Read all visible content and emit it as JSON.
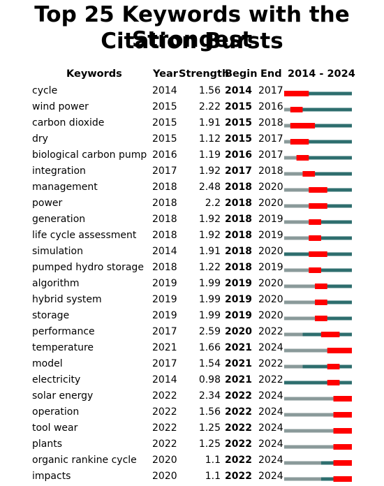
{
  "title_line1": "Top 25 Keywords with the Strongest",
  "title_line2": "Citation Bursts",
  "headers": {
    "keywords": "Keywords",
    "year": "Year",
    "strength": "Strength",
    "begin": "Begin",
    "end": "End",
    "range": "2014 - 2024"
  },
  "colors": {
    "burst": "#ff0000",
    "active": "#2e6e6e",
    "before": "#8a9a9a"
  },
  "chart_data": {
    "type": "table",
    "range_start": 2014,
    "range_end": 2024,
    "rows": [
      {
        "keyword": "cycle",
        "year": 2014,
        "strength": "1.56",
        "begin": 2014,
        "end": 2017
      },
      {
        "keyword": "wind power",
        "year": 2015,
        "strength": "2.22",
        "begin": 2015,
        "end": 2016
      },
      {
        "keyword": "carbon dioxide",
        "year": 2015,
        "strength": "1.91",
        "begin": 2015,
        "end": 2018
      },
      {
        "keyword": "dry",
        "year": 2015,
        "strength": "1.12",
        "begin": 2015,
        "end": 2017
      },
      {
        "keyword": "biological carbon pump",
        "year": 2016,
        "strength": "1.19",
        "begin": 2016,
        "end": 2017
      },
      {
        "keyword": "integration",
        "year": 2017,
        "strength": "1.92",
        "begin": 2017,
        "end": 2018
      },
      {
        "keyword": "management",
        "year": 2018,
        "strength": "2.48",
        "begin": 2018,
        "end": 2020
      },
      {
        "keyword": "power",
        "year": 2018,
        "strength": "2.2",
        "begin": 2018,
        "end": 2020
      },
      {
        "keyword": "generation",
        "year": 2018,
        "strength": "1.92",
        "begin": 2018,
        "end": 2019
      },
      {
        "keyword": "life cycle assessment",
        "year": 2018,
        "strength": "1.92",
        "begin": 2018,
        "end": 2019
      },
      {
        "keyword": "simulation",
        "year": 2014,
        "strength": "1.91",
        "begin": 2018,
        "end": 2020
      },
      {
        "keyword": "pumped hydro storage",
        "year": 2018,
        "strength": "1.22",
        "begin": 2018,
        "end": 2019
      },
      {
        "keyword": "algorithm",
        "year": 2019,
        "strength": "1.99",
        "begin": 2019,
        "end": 2020
      },
      {
        "keyword": "hybrid system",
        "year": 2019,
        "strength": "1.99",
        "begin": 2019,
        "end": 2020
      },
      {
        "keyword": "storage",
        "year": 2019,
        "strength": "1.99",
        "begin": 2019,
        "end": 2020
      },
      {
        "keyword": "performance",
        "year": 2017,
        "strength": "2.59",
        "begin": 2020,
        "end": 2022
      },
      {
        "keyword": "temperature",
        "year": 2021,
        "strength": "1.66",
        "begin": 2021,
        "end": 2024
      },
      {
        "keyword": "model",
        "year": 2017,
        "strength": "1.54",
        "begin": 2021,
        "end": 2022
      },
      {
        "keyword": "electricity",
        "year": 2014,
        "strength": "0.98",
        "begin": 2021,
        "end": 2022
      },
      {
        "keyword": "solar energy",
        "year": 2022,
        "strength": "2.34",
        "begin": 2022,
        "end": 2024
      },
      {
        "keyword": "operation",
        "year": 2022,
        "strength": "1.56",
        "begin": 2022,
        "end": 2024
      },
      {
        "keyword": "tool wear",
        "year": 2022,
        "strength": "1.25",
        "begin": 2022,
        "end": 2024
      },
      {
        "keyword": "plants",
        "year": 2022,
        "strength": "1.25",
        "begin": 2022,
        "end": 2024
      },
      {
        "keyword": "organic rankine cycle",
        "year": 2020,
        "strength": "1.1",
        "begin": 2022,
        "end": 2024
      },
      {
        "keyword": "impacts",
        "year": 2020,
        "strength": "1.1",
        "begin": 2022,
        "end": 2024
      }
    ]
  }
}
